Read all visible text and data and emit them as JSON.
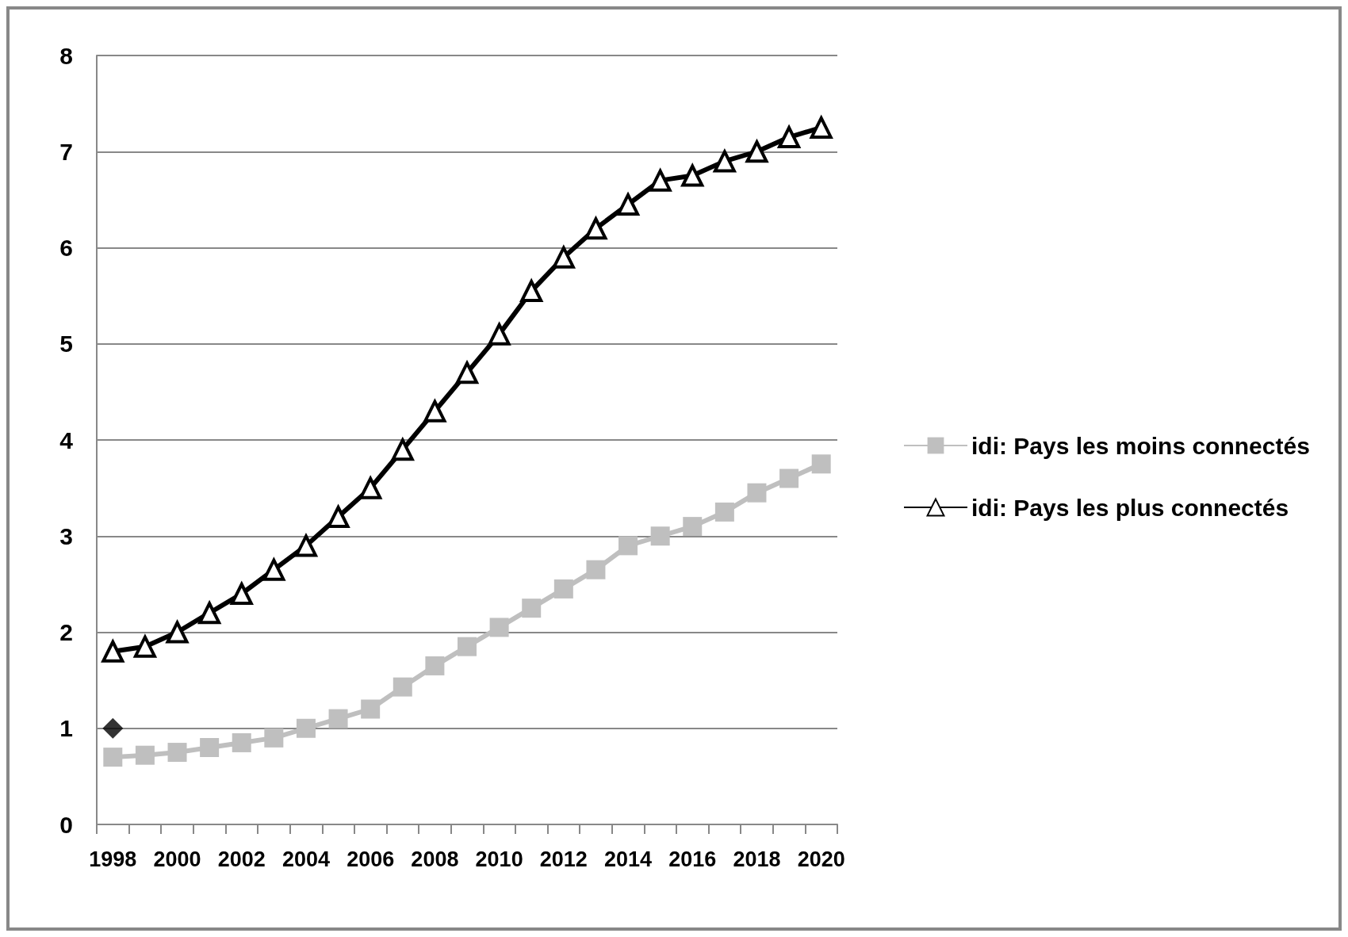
{
  "chart_data": {
    "type": "line",
    "categories": [
      "1998",
      null,
      "2000",
      null,
      "2002",
      null,
      "2004",
      null,
      "2006",
      null,
      "2008",
      null,
      "2010",
      null,
      "2012",
      null,
      "2014",
      null,
      "2016",
      null,
      "2018",
      null,
      "2020"
    ],
    "series": [
      {
        "name": "idi: Pays les moins connectés",
        "color": "#bfbfbf",
        "marker": "square",
        "values": [
          0.7,
          0.72,
          0.75,
          0.8,
          0.85,
          0.9,
          1.0,
          1.1,
          1.2,
          1.43,
          1.65,
          1.85,
          2.05,
          2.25,
          2.45,
          2.65,
          2.9,
          3.0,
          3.1,
          3.25,
          3.45,
          3.6,
          3.75
        ]
      },
      {
        "name": "idi: Pays les plus connectés",
        "color": "#000000",
        "marker": "triangle",
        "values": [
          1.8,
          1.85,
          2.0,
          2.2,
          2.4,
          2.65,
          2.9,
          3.2,
          3.5,
          3.9,
          4.3,
          4.7,
          5.1,
          5.55,
          5.9,
          6.2,
          6.45,
          6.7,
          6.75,
          6.9,
          7.0,
          7.15,
          7.25
        ]
      },
      {
        "type": "scatter",
        "color": "#000000",
        "marker": "diamond",
        "values": [
          1.0,
          null,
          null,
          null,
          null,
          null,
          null,
          null,
          null,
          null,
          null,
          null,
          null,
          null,
          null,
          null,
          null,
          null,
          null,
          null,
          null,
          null,
          null
        ]
      }
    ],
    "ylim": [
      0,
      8
    ],
    "yticks": [
      0,
      1,
      2,
      3,
      4,
      5,
      6,
      7,
      8
    ],
    "grid": "y",
    "legend": "right"
  }
}
